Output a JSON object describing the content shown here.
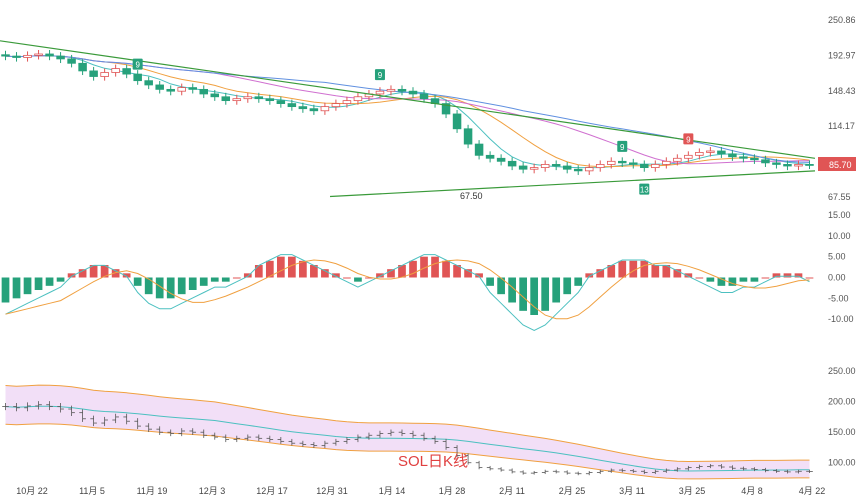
{
  "chart_data": [
    {
      "panel": "price",
      "type": "candlestick",
      "annotation": "SOL日K线",
      "last_price_label": "85.70",
      "low_label": "67.50",
      "y_ticks": [
        "250.86",
        "192.97",
        "148.43",
        "114.17",
        "85.70",
        "67.55"
      ],
      "dates": [
        "10月 22",
        "11月 5",
        "11月 19",
        "12月 3",
        "12月 17",
        "12月 31",
        "1月 14",
        "1月 28",
        "2月 11",
        "2月 25",
        "3月 11",
        "3月 25",
        "4月 8",
        "4月 22"
      ],
      "closes": [
        192,
        190,
        193,
        195,
        192,
        188,
        182,
        172,
        165,
        170,
        175,
        168,
        160,
        155,
        150,
        148,
        152,
        150,
        145,
        142,
        138,
        140,
        142,
        140,
        138,
        135,
        132,
        130,
        128,
        132,
        135,
        138,
        142,
        145,
        148,
        150,
        148,
        145,
        140,
        135,
        125,
        112,
        100,
        92,
        90,
        88,
        85,
        83,
        84,
        86,
        85,
        83,
        82,
        84,
        86,
        88,
        87,
        86,
        84,
        86,
        88,
        90,
        92,
        94,
        95,
        93,
        91,
        90,
        89,
        87,
        86,
        85,
        86,
        85.7
      ],
      "signals": [
        {
          "label": "9",
          "color": "#26a17b",
          "index": 12
        },
        {
          "label": "9",
          "color": "#26a17b",
          "index": 34
        },
        {
          "label": "9",
          "color": "#26a17b",
          "index": 56
        },
        {
          "label": "9",
          "color": "#e05555",
          "index": 62
        },
        {
          "label": "13",
          "color": "#26a17b",
          "index": 58
        }
      ],
      "colors": {
        "up": "#e05555",
        "down": "#26a17b",
        "trendline": "#3a9a3a",
        "price_badge": "#e05555"
      }
    },
    {
      "panel": "macd",
      "type": "bar-line",
      "y_ticks": [
        "15.00",
        "10.00",
        "5.00",
        "0.00",
        "-5.00",
        "-10.00"
      ],
      "ylim": [
        -15,
        15
      ],
      "histogram": [
        -6,
        -5,
        -4,
        -3,
        -2,
        -1,
        1,
        2,
        3,
        3,
        2,
        1,
        -2,
        -4,
        -5,
        -5,
        -4,
        -3,
        -2,
        -1,
        -1,
        0,
        1,
        3,
        4,
        5,
        5,
        4,
        3,
        2,
        1,
        0,
        -1,
        0,
        1,
        2,
        3,
        4,
        5,
        5,
        4,
        3,
        2,
        1,
        -2,
        -4,
        -6,
        -8,
        -9,
        -8,
        -6,
        -4,
        -2,
        1,
        2,
        3,
        4,
        4,
        4,
        3,
        3,
        2,
        1,
        0,
        -1,
        -2,
        -2,
        -1,
        -1,
        0,
        1,
        1,
        1,
        0
      ]
    },
    {
      "panel": "bollinger",
      "type": "candlestick",
      "y_ticks": [
        "250.00",
        "200.00",
        "150.00",
        "100.00"
      ],
      "ylim": [
        75,
        265
      ],
      "colors": {
        "band_fill": "#e9c9f2",
        "upper": "#f0a040",
        "mid": "#4cc0c0"
      }
    }
  ]
}
